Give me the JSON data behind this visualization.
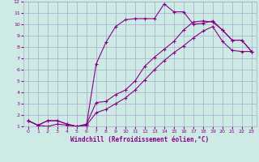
{
  "title": "",
  "xlabel": "Windchill (Refroidissement éolien,°C)",
  "ylabel": "",
  "bg_color": "#ceeae4",
  "grid_color": "#aaaacc",
  "line_color": "#880088",
  "xlim": [
    -0.5,
    23.5
  ],
  "ylim": [
    1,
    12
  ],
  "xticks": [
    0,
    1,
    2,
    3,
    4,
    5,
    6,
    7,
    8,
    9,
    10,
    11,
    12,
    13,
    14,
    15,
    16,
    17,
    18,
    19,
    20,
    21,
    22,
    23
  ],
  "yticks": [
    1,
    2,
    3,
    4,
    5,
    6,
    7,
    8,
    9,
    10,
    11,
    12
  ],
  "lines": [
    {
      "x": [
        0,
        1,
        2,
        3,
        4,
        5,
        6,
        7,
        8,
        9,
        10,
        11,
        12,
        13,
        14,
        15,
        16,
        17,
        18,
        19,
        20,
        21,
        22,
        23
      ],
      "y": [
        1.5,
        1.1,
        1.0,
        1.2,
        1.1,
        1.0,
        1.1,
        6.5,
        8.4,
        9.8,
        10.4,
        10.5,
        10.5,
        10.5,
        11.8,
        11.1,
        11.1,
        10.0,
        10.1,
        10.3,
        9.5,
        8.6,
        8.6,
        7.6
      ]
    },
    {
      "x": [
        0,
        1,
        2,
        3,
        4,
        5,
        6,
        7,
        8,
        9,
        10,
        11,
        12,
        13,
        14,
        15,
        16,
        17,
        18,
        19,
        20,
        21,
        22,
        23
      ],
      "y": [
        1.5,
        1.1,
        1.5,
        1.5,
        1.2,
        1.0,
        1.2,
        3.1,
        3.2,
        3.8,
        4.2,
        5.0,
        6.3,
        7.1,
        7.8,
        8.5,
        9.5,
        10.2,
        10.3,
        10.2,
        9.5,
        8.6,
        8.6,
        7.6
      ]
    },
    {
      "x": [
        0,
        1,
        2,
        3,
        4,
        5,
        6,
        7,
        8,
        9,
        10,
        11,
        12,
        13,
        14,
        15,
        16,
        17,
        18,
        19,
        20,
        21,
        22,
        23
      ],
      "y": [
        1.5,
        1.1,
        1.5,
        1.5,
        1.2,
        1.0,
        1.1,
        2.2,
        2.5,
        3.0,
        3.5,
        4.2,
        5.1,
        6.0,
        6.8,
        7.5,
        8.1,
        8.8,
        9.4,
        9.8,
        8.5,
        7.7,
        7.6,
        7.6
      ]
    }
  ]
}
